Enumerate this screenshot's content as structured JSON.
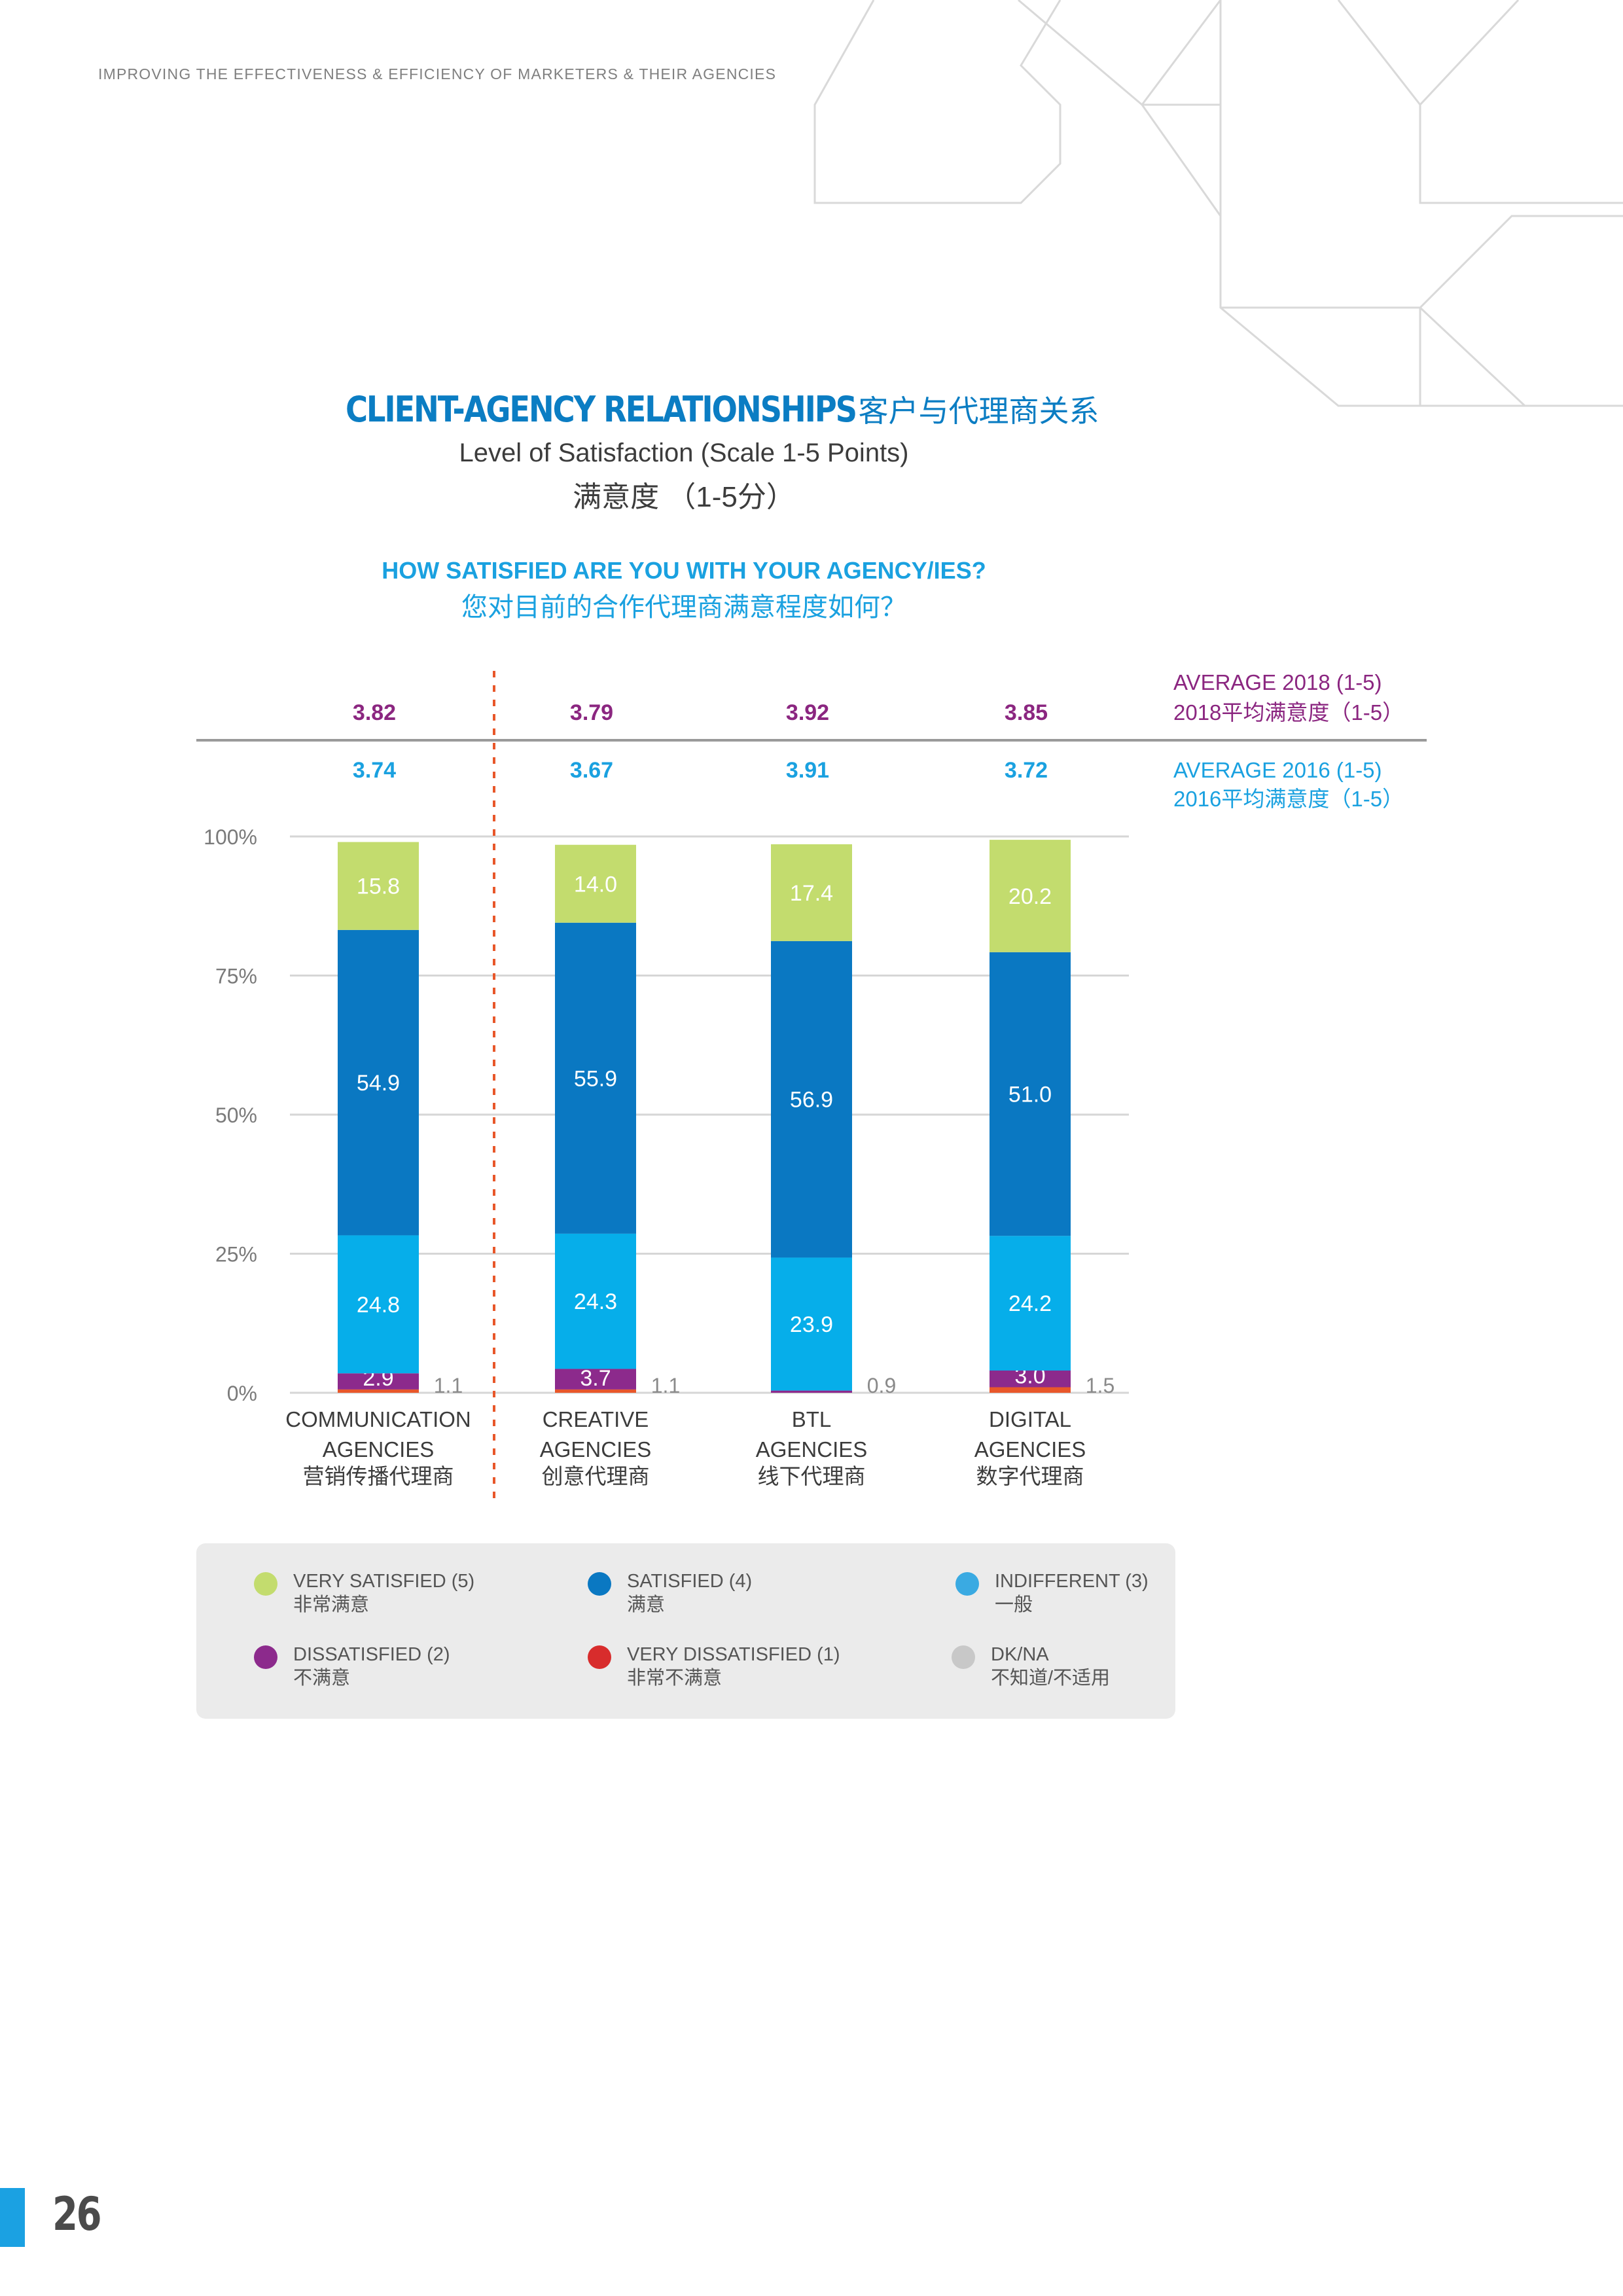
{
  "running_header": "IMPROVING THE EFFECTIVENESS & EFFICIENCY OF MARKETERS & THEIR AGENCIES",
  "title": {
    "en": "CLIENT-AGENCY RELATIONSHIPS",
    "zh": "客户与代理商关系"
  },
  "subtitle": {
    "en": "Level of Satisfaction (Scale 1-5 Points)",
    "zh": "满意度 （1-5分）"
  },
  "question": {
    "en": "HOW SATISFIED ARE YOU WITH YOUR AGENCY/IES?",
    "zh": "您对目前的合作代理商满意程度如何？"
  },
  "page_number": "26",
  "colors": {
    "very_satisfied": "#c3dc6e",
    "satisfied": "#0a78c2",
    "indifferent": "#06aeea",
    "dissatisfied": "#8c2a8c",
    "very_dissatisfied": "#e8572a",
    "dk_na": "#c8c8c8",
    "avg_2018": "#8b2680",
    "avg_2016": "#1aa1e0",
    "divider": "#e8572a"
  },
  "legend": [
    {
      "key": "very_satisfied",
      "en": "VERY SATISFIED (5)",
      "zh": "非常满意",
      "color": "#c3dc6e"
    },
    {
      "key": "satisfied",
      "en": "SATISFIED (4)",
      "zh": "满意",
      "color": "#0a78c2"
    },
    {
      "key": "indifferent",
      "en": "INDIFFERENT (3)",
      "zh": "一般",
      "color": "#3aaae2"
    },
    {
      "key": "dissatisfied",
      "en": "DISSATISFIED (2)",
      "zh": "不满意",
      "color": "#8c2a8c"
    },
    {
      "key": "very_dissatisfied",
      "en": "VERY DISSATISFIED (1)",
      "zh": "非常不满意",
      "color": "#d82c2c"
    },
    {
      "key": "dk_na",
      "en": "DK/NA",
      "zh": "不知道/不适用",
      "color": "#c8c8c8"
    }
  ],
  "chart_data": {
    "type": "bar",
    "stacked": true,
    "title": "How satisfied are you with your agency/ies?",
    "ylim": [
      0,
      100
    ],
    "yticks": [
      "0%",
      "25%",
      "50%",
      "75%",
      "100%"
    ],
    "categories": [
      {
        "en": [
          "COMMUNICATION",
          "AGENCIES"
        ],
        "zh": "营销传播代理商"
      },
      {
        "en": [
          "CREATIVE",
          "AGENCIES"
        ],
        "zh": "创意代理商"
      },
      {
        "en": [
          "BTL",
          "AGENCIES"
        ],
        "zh": "线下代理商"
      },
      {
        "en": [
          "DIGITAL",
          "AGENCIES"
        ],
        "zh": "数字代理商"
      }
    ],
    "series": [
      {
        "name": "VERY DISSATISFIED (1)",
        "key": "very_dissatisfied",
        "values": [
          0.6,
          0.6,
          0.0,
          1.0
        ],
        "show_label": false
      },
      {
        "name": "DISSATISFIED (2)",
        "key": "dissatisfied",
        "values": [
          2.9,
          3.7,
          0.4,
          3.0
        ],
        "labels": [
          "2.9",
          "3.7",
          "",
          "3.0"
        ]
      },
      {
        "name": "INDIFFERENT (3)",
        "key": "indifferent",
        "values": [
          24.8,
          24.3,
          23.9,
          24.2
        ],
        "labels": [
          "24.8",
          "24.3",
          "23.9",
          "24.2"
        ]
      },
      {
        "name": "SATISFIED (4)",
        "key": "satisfied",
        "values": [
          54.9,
          55.9,
          56.9,
          51.0
        ],
        "labels": [
          "54.9",
          "55.9",
          "56.9",
          "51.0"
        ]
      },
      {
        "name": "VERY SATISFIED (5)",
        "key": "very_satisfied",
        "values": [
          15.8,
          14.0,
          17.4,
          20.2
        ],
        "labels": [
          "15.8",
          "14.0",
          "17.4",
          "20.2"
        ]
      }
    ],
    "dk_na": {
      "labels": [
        "1.1",
        "1.1",
        "0.9",
        "1.5"
      ]
    },
    "average_2018": {
      "label_en": "AVERAGE 2018 (1-5)",
      "label_zh": "2018平均满意度（1-5）",
      "values": [
        "3.82",
        "3.79",
        "3.92",
        "3.85"
      ]
    },
    "average_2016": {
      "label_en": "AVERAGE 2016 (1-5)",
      "label_zh": "2016平均满意度（1-5）",
      "values": [
        "3.74",
        "3.67",
        "3.91",
        "3.72"
      ]
    }
  }
}
